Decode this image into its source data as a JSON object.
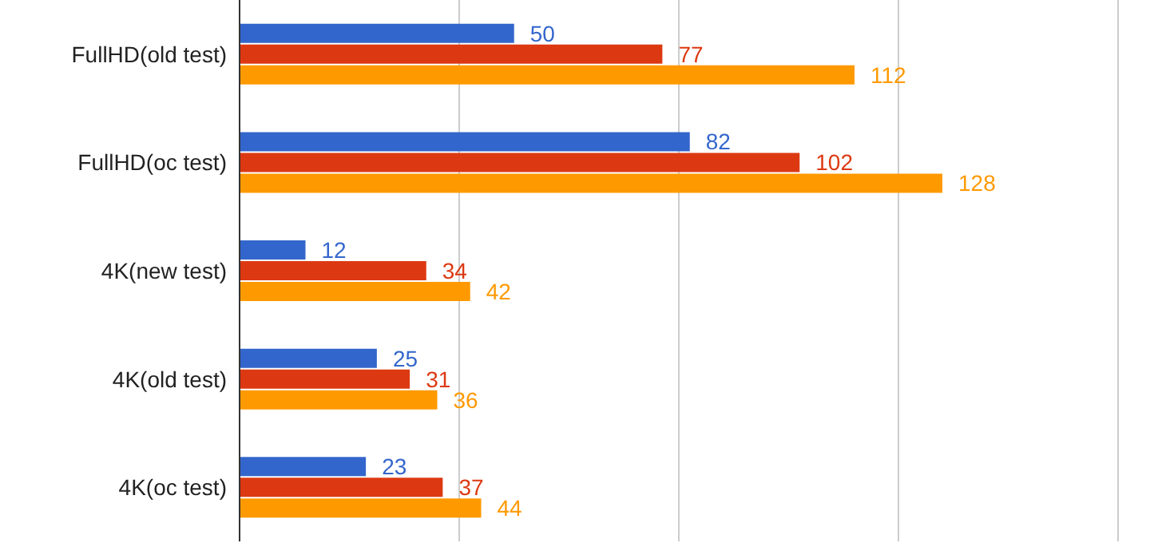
{
  "chart_data": {
    "type": "bar",
    "orientation": "horizontal",
    "categories": [
      "FullHD(old test)",
      "FullHD(oc test)",
      "4K(new test)",
      "4K(old test)",
      "4K(oc test)"
    ],
    "series": [
      {
        "color": "#3366cc",
        "values": [
          50,
          82,
          12,
          25,
          23
        ]
      },
      {
        "color": "#dc3912",
        "values": [
          77,
          102,
          34,
          31,
          37
        ]
      },
      {
        "color": "#ff9900",
        "values": [
          112,
          128,
          42,
          36,
          44
        ]
      }
    ],
    "xlim": [
      0,
      160
    ],
    "xticks": [
      {
        "value": 0,
        "label": null
      },
      {
        "value": 40,
        "label": null
      },
      {
        "value": 80,
        "label": null
      },
      {
        "value": 120,
        "label": null
      },
      {
        "value": 160,
        "label": null
      }
    ],
    "grid": "x",
    "tick_labels": "y",
    "data_labels": true
  }
}
